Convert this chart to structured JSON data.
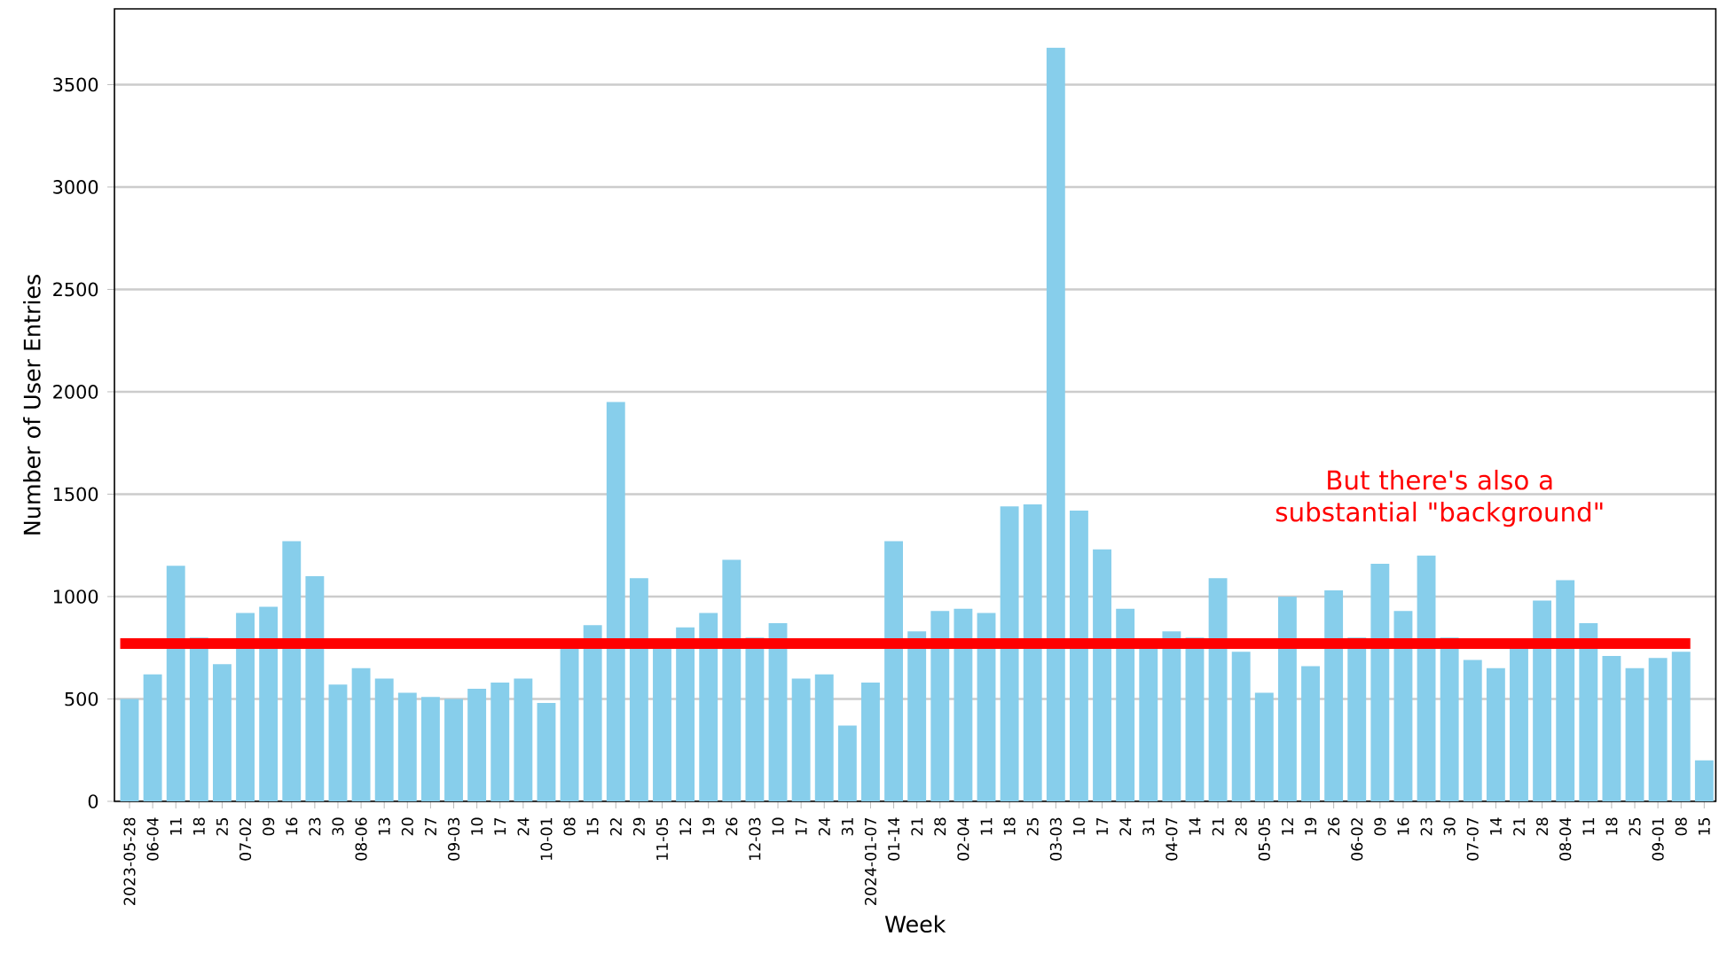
{
  "chart_data": {
    "type": "bar",
    "xlabel": "Week",
    "ylabel": "Number of User Entries",
    "categories": [
      "2023-05-28",
      "06-04",
      "11",
      "18",
      "25",
      "07-02",
      "09",
      "16",
      "23",
      "30",
      "08-06",
      "13",
      "20",
      "27",
      "09-03",
      "10",
      "17",
      "24",
      "10-01",
      "08",
      "15",
      "22",
      "29",
      "11-05",
      "12",
      "19",
      "26",
      "12-03",
      "10",
      "17",
      "24",
      "31",
      "2024-01-07",
      "01-14",
      "21",
      "28",
      "02-04",
      "11",
      "18",
      "25",
      "03-03",
      "10",
      "17",
      "24",
      "31",
      "04-07",
      "14",
      "21",
      "28",
      "05-05",
      "12",
      "19",
      "26",
      "06-02",
      "09",
      "16",
      "23",
      "30",
      "07-07",
      "14",
      "21",
      "28",
      "08-04",
      "11",
      "18",
      "25",
      "09-01",
      "08",
      "15"
    ],
    "values": [
      500,
      620,
      1150,
      800,
      670,
      920,
      950,
      1270,
      1100,
      570,
      650,
      600,
      530,
      510,
      500,
      550,
      580,
      600,
      480,
      770,
      860,
      1950,
      1090,
      770,
      850,
      920,
      1180,
      800,
      870,
      600,
      620,
      370,
      580,
      1270,
      830,
      930,
      940,
      920,
      1440,
      1450,
      3680,
      1420,
      1230,
      940,
      770,
      830,
      800,
      1090,
      730,
      530,
      1000,
      660,
      1030,
      800,
      1160,
      930,
      1200,
      800,
      690,
      650,
      770,
      980,
      1080,
      870,
      710,
      650,
      700,
      730,
      200
    ],
    "color": "#87ceeb",
    "ylim": [
      0,
      3870
    ],
    "yticks": [
      0,
      500,
      1000,
      1500,
      2000,
      2500,
      3000,
      3500
    ],
    "grid": "y",
    "ref_lines": [
      {
        "axis": "y",
        "value": 770,
        "color": "#ff0000"
      }
    ],
    "annotations": [
      "But there's also a substantial \"background\""
    ]
  }
}
